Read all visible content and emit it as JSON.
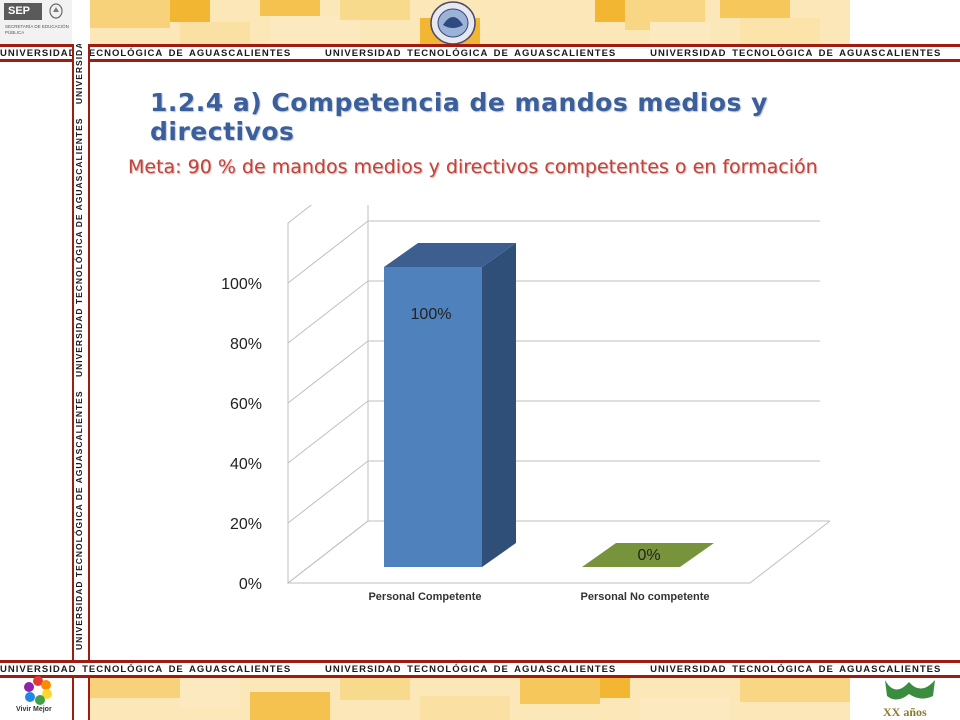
{
  "institution": "UNIVERSIDAD TECNOLÓGICA DE AGUASCALIENTES",
  "sep": {
    "logo_text": "SEP",
    "caption": "SECRETARÍA DE EDUCACIÓN PÚBLICA"
  },
  "footer": {
    "vivir_mejor": "Vivir Mejor",
    "ut_anniversary": "XX años"
  },
  "title": "1.2.4 a) Competencia de mandos medios y directivos",
  "subtitle": "Meta: 90 % de mandos medios y directivos competentes o en formación",
  "colors": {
    "bar_competente": "#4f81bd",
    "bar_no_competente": "#77933c",
    "title": "#3b5f9b",
    "subtitle": "#c0443b",
    "band_line": "#a01b12"
  },
  "chart_data": {
    "type": "bar",
    "style": "3d",
    "categories": [
      "Personal Competente",
      "Personal No competente"
    ],
    "values": [
      100,
      0
    ],
    "data_labels": [
      "100%",
      "0%"
    ],
    "y_ticks": [
      "0%",
      "20%",
      "40%",
      "60%",
      "80%",
      "100%"
    ],
    "ylim": [
      0,
      100
    ],
    "grid": true,
    "legend": "none"
  }
}
